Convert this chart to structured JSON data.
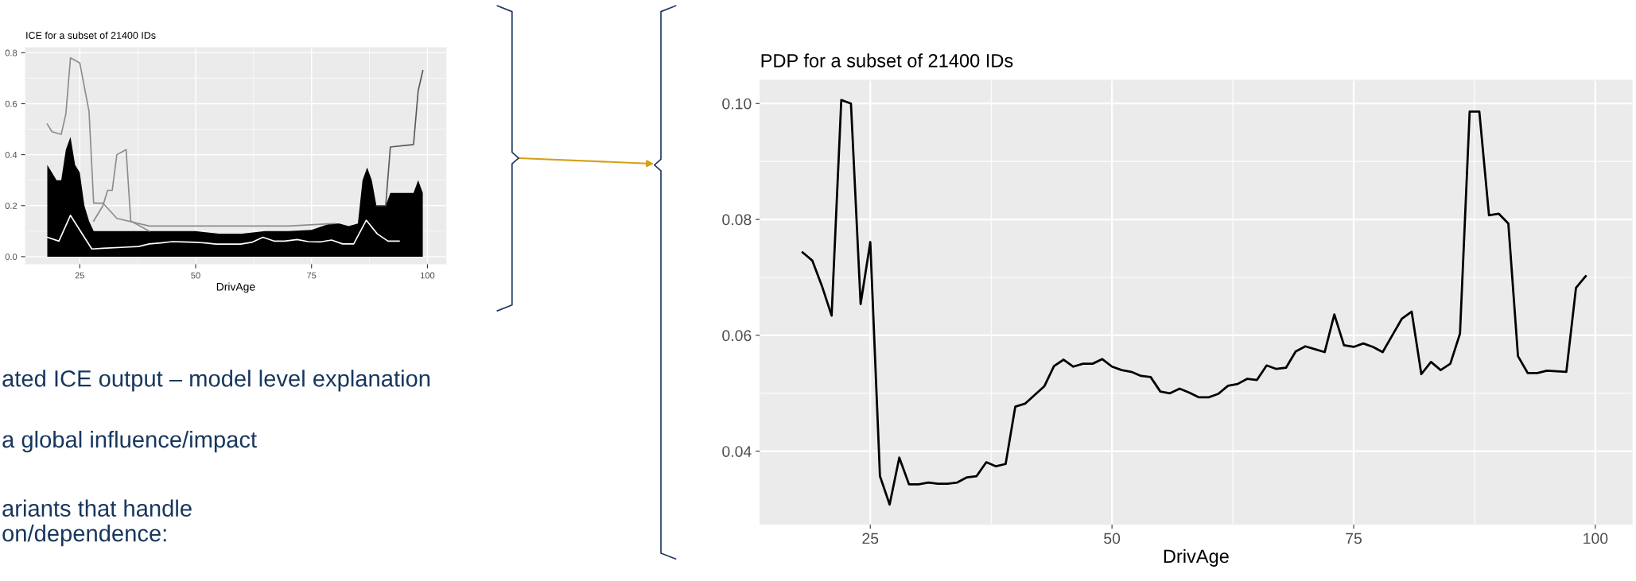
{
  "chart_data": [
    {
      "type": "line",
      "title": "ICE for a subset of 21400 IDs",
      "xlabel": "DrivAge",
      "xlim": [
        13.3,
        104
      ],
      "ylim": [
        -0.028,
        0.82
      ],
      "xticks": [
        25,
        50,
        75,
        100
      ],
      "yticks": [
        {
          "value": 0,
          "label": "0.0"
        },
        0.2,
        0.4,
        0.6,
        0.8
      ],
      "grid": true,
      "series": [
        {
          "type": "area",
          "color": "#000000",
          "x": [
            18,
            20,
            21,
            22,
            23,
            24,
            25,
            26,
            27,
            28,
            30,
            35,
            40,
            45,
            50,
            55,
            60,
            65,
            70,
            75,
            79,
            81,
            83,
            85,
            86,
            87,
            88,
            89,
            91,
            92,
            97,
            98,
            99
          ],
          "values": [
            0.36,
            0.3,
            0.3,
            0.42,
            0.47,
            0.36,
            0.33,
            0.2,
            0.14,
            0.1,
            0.1,
            0.1,
            0.1,
            0.1,
            0.1,
            0.09,
            0.09,
            0.1,
            0.1,
            0.105,
            0.13,
            0.13,
            0.12,
            0.13,
            0.3,
            0.35,
            0.3,
            0.2,
            0.2,
            0.25,
            0.25,
            0.3,
            0.25
          ]
        },
        {
          "color": "#8c8c8c",
          "x": [
            18,
            19,
            21,
            22,
            23,
            25,
            27,
            28,
            30,
            33,
            40,
            50,
            60,
            70,
            80
          ],
          "values": [
            0.52,
            0.49,
            0.48,
            0.56,
            0.78,
            0.76,
            0.57,
            0.21,
            0.21,
            0.15,
            0.12,
            0.12,
            0.12,
            0.12,
            0.13
          ]
        },
        {
          "color": "#8c8c8c",
          "x": [
            28,
            30,
            31,
            32,
            33,
            35,
            36,
            40
          ],
          "values": [
            0.14,
            0.2,
            0.26,
            0.26,
            0.4,
            0.42,
            0.14,
            0.1
          ]
        },
        {
          "color": "#595959",
          "x": [
            89,
            91,
            92,
            97,
            98,
            99
          ],
          "values": [
            0.2,
            0.2,
            0.43,
            0.44,
            0.65,
            0.73
          ]
        },
        {
          "color": "#ffffff",
          "x": [
            18,
            20.5,
            23,
            27.6,
            30,
            34.8,
            37.7,
            40,
            42.5,
            45,
            47.3,
            50,
            52,
            54.4,
            57.3,
            59.7,
            62.1,
            64.5,
            66.9,
            69.2,
            71.9,
            74.3,
            77,
            79.3,
            81.7,
            84.1,
            86.8,
            89.2,
            91.5,
            93.9
          ],
          "values": [
            0.076,
            0.061,
            0.162,
            0.03,
            0.033,
            0.037,
            0.04,
            0.05,
            0.054,
            0.059,
            0.058,
            0.056,
            0.054,
            0.049,
            0.049,
            0.049,
            0.056,
            0.076,
            0.061,
            0.061,
            0.067,
            0.059,
            0.058,
            0.065,
            0.05,
            0.05,
            0.143,
            0.089,
            0.061,
            0.061
          ]
        }
      ],
      "annotations": [
        "ated ICE output – model level explanation",
        "a global influence/impact",
        "ariants that handle\non/dependence:"
      ]
    },
    {
      "type": "line",
      "title": "PDP for a subset of 21400 IDs",
      "xlabel": "DrivAge",
      "xlim": [
        13.6,
        103.8
      ],
      "ylim": [
        0.0274,
        0.104
      ],
      "xticks": [
        25,
        50,
        75,
        100
      ],
      "yticks": [
        0.04,
        0.06,
        0.08,
        {
          "value": 0.1,
          "label": "0.10"
        }
      ],
      "grid": true,
      "series": [
        {
          "color": "#000000",
          "x": [
            18,
            19,
            20,
            21,
            22,
            23,
            24,
            25,
            26,
            27,
            28,
            29,
            30,
            31,
            32,
            33,
            34,
            35,
            36,
            37,
            38,
            39,
            40,
            41,
            42,
            43,
            44,
            45,
            46,
            47,
            48,
            49,
            50,
            51,
            52,
            53,
            54,
            55,
            56,
            57,
            58,
            59,
            60,
            61,
            62,
            63,
            64,
            65,
            66,
            67,
            68,
            69,
            70,
            71,
            72,
            73,
            74,
            75,
            76,
            77,
            78,
            79,
            80,
            81,
            82,
            83,
            84,
            85,
            86,
            87,
            88,
            89,
            90,
            91,
            92,
            93,
            94,
            95,
            96,
            97,
            98,
            99
          ],
          "values": [
            0.0743,
            0.0729,
            0.0685,
            0.0634,
            0.1006,
            0.1,
            0.0654,
            0.0761,
            0.0357,
            0.0308,
            0.0389,
            0.0343,
            0.0343,
            0.0346,
            0.0344,
            0.0344,
            0.0346,
            0.0355,
            0.0357,
            0.0381,
            0.0374,
            0.0378,
            0.0477,
            0.0482,
            0.0497,
            0.0512,
            0.0547,
            0.0558,
            0.0546,
            0.0551,
            0.0551,
            0.0559,
            0.0546,
            0.054,
            0.0537,
            0.053,
            0.0528,
            0.0503,
            0.05,
            0.0508,
            0.0501,
            0.0493,
            0.0493,
            0.0499,
            0.0513,
            0.0516,
            0.0525,
            0.0523,
            0.0548,
            0.0542,
            0.0544,
            0.0572,
            0.0581,
            0.0576,
            0.0571,
            0.0636,
            0.0583,
            0.058,
            0.0586,
            0.058,
            0.0571,
            0.06,
            0.0629,
            0.0641,
            0.0533,
            0.0554,
            0.054,
            0.0551,
            0.0603,
            0.0986,
            0.0986,
            0.0807,
            0.081,
            0.0793,
            0.0564,
            0.0535,
            0.0535,
            0.0539,
            0.0538,
            0.0537,
            0.0682,
            0.0702
          ]
        }
      ]
    }
  ]
}
